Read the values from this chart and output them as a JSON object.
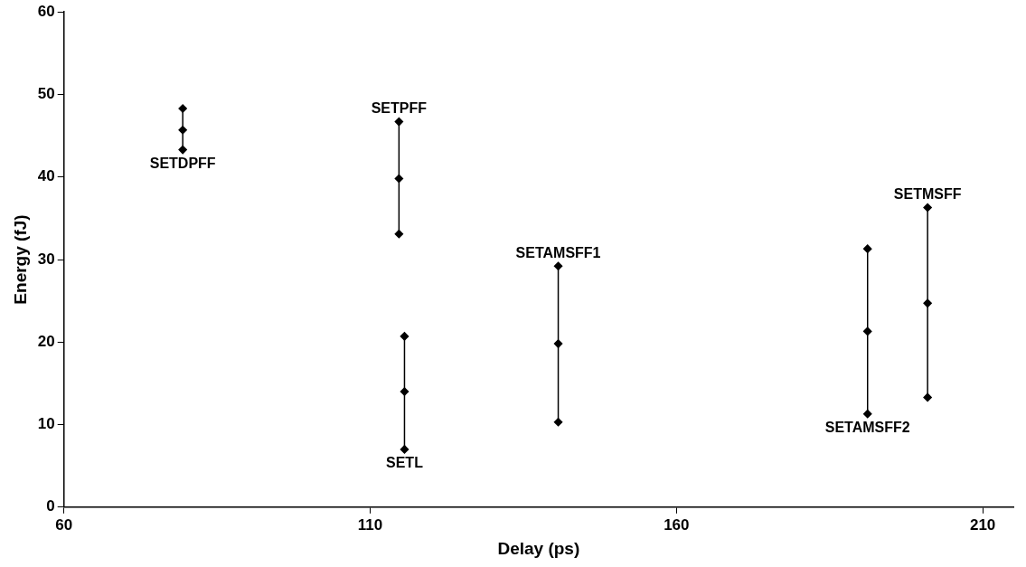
{
  "chart_data": {
    "type": "line",
    "xlabel": "Delay (ps)",
    "ylabel": "Energy (fJ)",
    "xlim": [
      60,
      215
    ],
    "xticks": [
      60,
      110,
      160,
      210
    ],
    "ylim": [
      0,
      60
    ],
    "yticks": [
      0,
      10,
      20,
      30,
      40,
      50,
      60
    ],
    "marker": "diamond",
    "line_style": "solid",
    "legend": false,
    "grid": false,
    "series": [
      {
        "color": "#000000",
        "x": [
          79.4,
          79.4,
          79.4
        ],
        "values": [
          43.3,
          45.7,
          48.3
        ]
      },
      {
        "color": "#000000",
        "x": [
          114.7,
          114.7,
          114.7
        ],
        "values": [
          33.1,
          39.8,
          46.7
        ]
      },
      {
        "color": "#000000",
        "x": [
          115.6,
          115.6,
          115.6
        ],
        "values": [
          7.0,
          14.0,
          20.7
        ]
      },
      {
        "color": "#000000",
        "x": [
          140.7,
          140.7,
          140.7
        ],
        "values": [
          10.3,
          19.8,
          29.2
        ]
      },
      {
        "color": "#000000",
        "x": [
          191.2,
          191.2,
          191.2
        ],
        "values": [
          11.3,
          21.3,
          31.3
        ]
      },
      {
        "color": "#000000",
        "x": [
          201,
          201,
          201
        ],
        "values": [
          13.3,
          24.7,
          36.3
        ]
      }
    ],
    "annotations": [
      {
        "text": "SETDPFF",
        "x": 79.4,
        "y": 43.3
      },
      {
        "text": "SETPFF",
        "x": 114.7,
        "y": 46.7
      },
      {
        "text": "SETL",
        "x": 115.6,
        "y": 7.0
      },
      {
        "text": "SETAMSFF1",
        "x": 140.7,
        "y": 29.2
      },
      {
        "text": "SETAMSFF2",
        "x": 191.2,
        "y": 11.3
      },
      {
        "text": "SETMSFF",
        "x": 201,
        "y": 36.3
      }
    ]
  }
}
